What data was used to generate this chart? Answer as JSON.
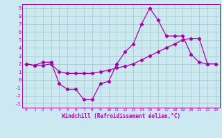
{
  "x": [
    0,
    1,
    2,
    3,
    4,
    5,
    6,
    7,
    8,
    9,
    10,
    11,
    12,
    13,
    14,
    15,
    16,
    17,
    18,
    19,
    20,
    21,
    22,
    23
  ],
  "line1": [
    2,
    1.8,
    2.2,
    2.2,
    -0.5,
    -1.2,
    -1.2,
    -2.5,
    -2.5,
    -0.5,
    -0.2,
    2.0,
    3.5,
    4.5,
    7.0,
    9.0,
    7.5,
    5.5,
    5.5,
    5.5,
    3.2,
    2.2,
    2.0,
    2.0
  ],
  "line2": [
    2,
    1.8,
    1.8,
    2.0,
    1.0,
    0.8,
    0.8,
    0.8,
    0.8,
    1.0,
    1.2,
    1.5,
    1.7,
    2.0,
    2.5,
    3.0,
    3.5,
    4.0,
    4.5,
    5.0,
    5.2,
    5.2,
    2.0,
    2.0
  ],
  "line_color": "#aa00aa",
  "bg_color": "#cce8f0",
  "grid_color": "#aacccc",
  "xlabel": "Windchill (Refroidissement éolien,°C)",
  "xlim": [
    -0.5,
    23.5
  ],
  "ylim": [
    -3.5,
    9.5
  ],
  "yticks": [
    9,
    8,
    7,
    6,
    5,
    4,
    3,
    2,
    1,
    0,
    -1,
    -2,
    -3
  ],
  "xticks": [
    0,
    1,
    2,
    3,
    4,
    5,
    6,
    7,
    8,
    9,
    10,
    11,
    12,
    13,
    14,
    15,
    16,
    17,
    18,
    19,
    20,
    21,
    22,
    23
  ]
}
